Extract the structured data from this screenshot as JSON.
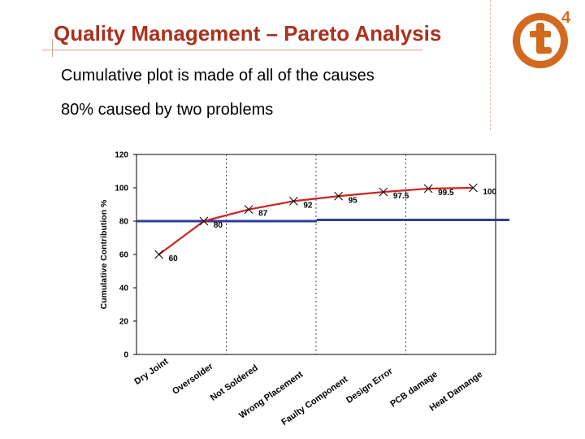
{
  "slide": {
    "title": "Quality Management – Pareto Analysis",
    "bullets": [
      "Cumulative plot is made of all of the causes",
      "80% caused by two problems"
    ],
    "logo": {
      "letter": "t",
      "superscript": "4",
      "color": "#d2691e"
    }
  },
  "chart_data": {
    "type": "line",
    "ylabel": "Cumulative Contribution %",
    "ylim": [
      0,
      120
    ],
    "yticks": [
      "0",
      "20",
      "40",
      "60",
      "80",
      "100",
      "120"
    ],
    "categories": [
      "Dry Joint",
      "Oversolder",
      "Not Soldered",
      "Wrong Placement",
      "Faulty Component",
      "Design Error",
      "PCB damage",
      "Heat Damange"
    ],
    "series": [
      {
        "values": [
          60,
          80,
          87,
          92,
          95,
          97.5,
          99.5,
          100
        ],
        "color": "#cc2222"
      }
    ],
    "data_labels": [
      "60",
      "80",
      "87",
      "92",
      "95",
      "97.5",
      "99.5",
      "100"
    ],
    "reference_line": {
      "value": 80,
      "color": "#2e3d9a"
    },
    "grid": false
  }
}
